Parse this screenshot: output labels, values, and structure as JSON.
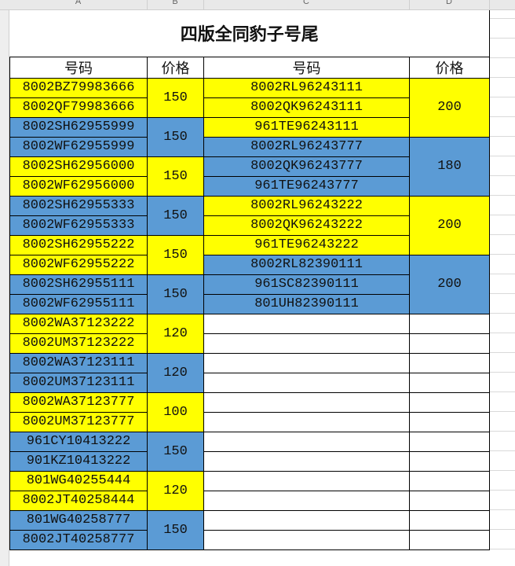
{
  "columns": [
    "A",
    "B",
    "C",
    "D"
  ],
  "title": "四版全同豹子号尾",
  "headers": {
    "a": "号码",
    "b": "价格",
    "c": "号码",
    "d": "价格"
  },
  "colors": {
    "yellow": "#ffff00",
    "blue": "#5b9bd5"
  },
  "left_groups": [
    {
      "color": "yellow",
      "price": "150",
      "numbers": [
        "8002BZ79983666",
        "8002QF79983666"
      ]
    },
    {
      "color": "blue",
      "price": "150",
      "numbers": [
        "8002SH62955999",
        "8002WF62955999"
      ]
    },
    {
      "color": "yellow",
      "price": "150",
      "numbers": [
        "8002SH62956000",
        "8002WF62956000"
      ]
    },
    {
      "color": "blue",
      "price": "150",
      "numbers": [
        "8002SH62955333",
        "8002WF62955333"
      ]
    },
    {
      "color": "yellow",
      "price": "150",
      "numbers": [
        "8002SH62955222",
        "8002WF62955222"
      ]
    },
    {
      "color": "blue",
      "price": "150",
      "numbers": [
        "8002SH62955111",
        "8002WF62955111"
      ]
    },
    {
      "color": "yellow",
      "price": "120",
      "numbers": [
        "8002WA37123222",
        "8002UM37123222"
      ]
    },
    {
      "color": "blue",
      "price": "120",
      "numbers": [
        "8002WA37123111",
        "8002UM37123111"
      ]
    },
    {
      "color": "yellow",
      "price": "100",
      "numbers": [
        "8002WA37123777",
        "8002UM37123777"
      ]
    },
    {
      "color": "blue",
      "price": "150",
      "numbers": [
        "961CY10413222",
        "901KZ10413222"
      ]
    },
    {
      "color": "yellow",
      "price": "120",
      "numbers": [
        "801WG40255444",
        "8002JT40258444"
      ]
    },
    {
      "color": "blue",
      "price": "150",
      "numbers": [
        "801WG40258777",
        "8002JT40258777"
      ]
    }
  ],
  "right_groups": [
    {
      "color": "yellow",
      "price": "200",
      "numbers": [
        "8002RL96243111",
        "8002QK96243111",
        "961TE96243111"
      ]
    },
    {
      "color": "blue",
      "price": "180",
      "numbers": [
        "8002RL96243777",
        "8002QK96243777",
        "961TE96243777"
      ]
    },
    {
      "color": "yellow",
      "price": "200",
      "numbers": [
        "8002RL96243222",
        "8002QK96243222",
        "961TE96243222"
      ]
    },
    {
      "color": "blue",
      "price": "200",
      "numbers": [
        "8002RL82390111",
        "961SC82390111",
        "801UH82390111"
      ]
    }
  ]
}
